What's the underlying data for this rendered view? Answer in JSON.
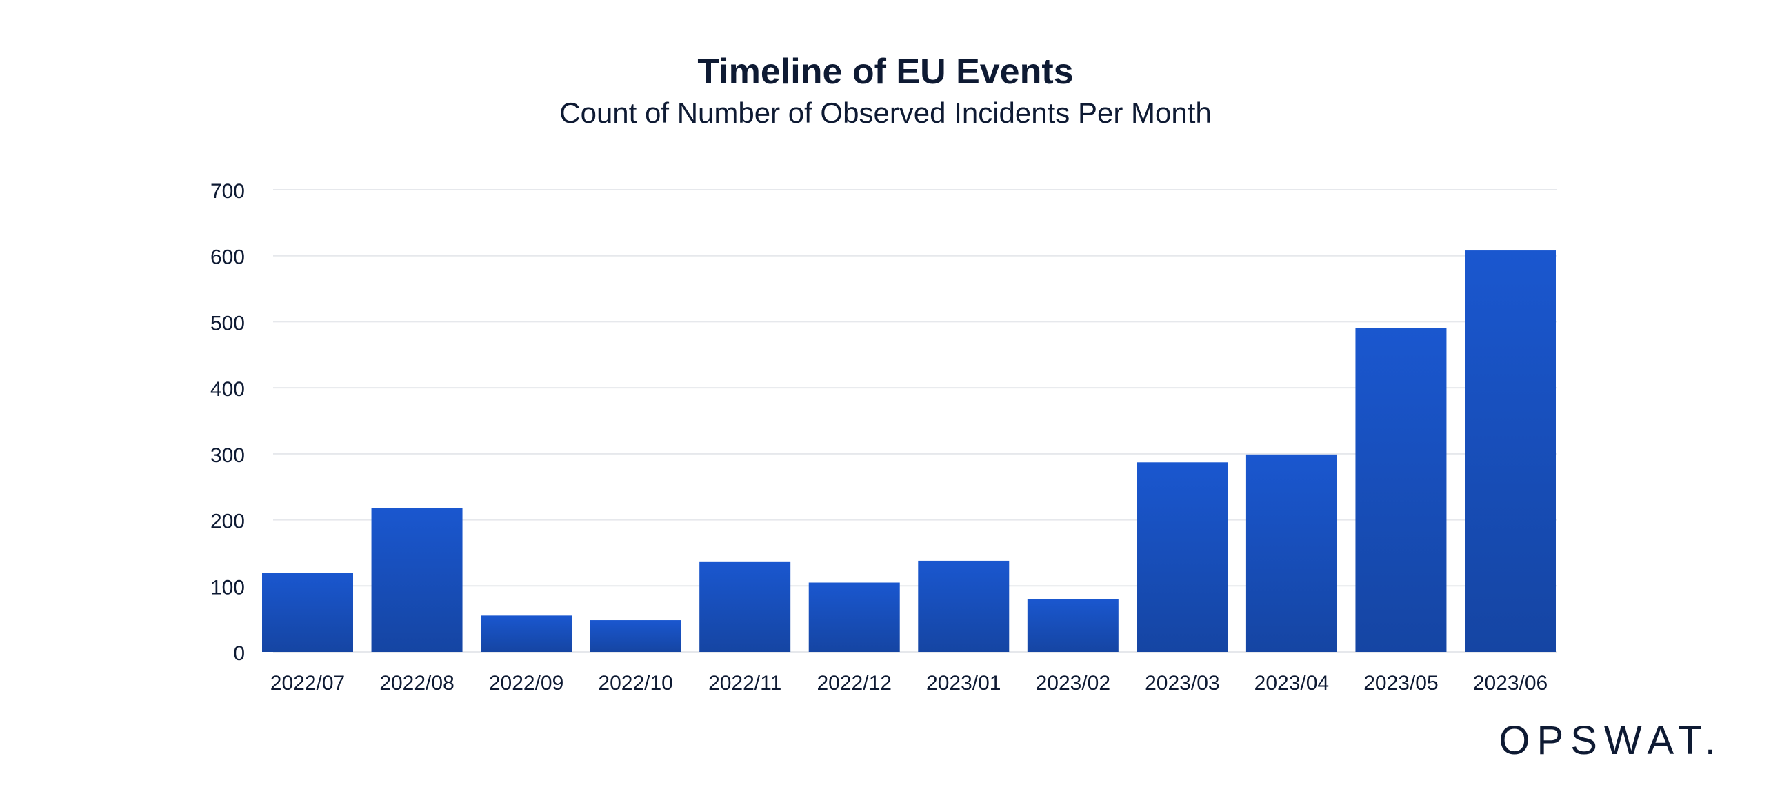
{
  "chart_data": {
    "type": "bar",
    "title": "Timeline of EU Events",
    "subtitle": "Count of Number of Observed Incidents Per Month",
    "xlabel": "",
    "ylabel": "",
    "categories": [
      "2022/07",
      "2022/08",
      "2022/09",
      "2022/10",
      "2022/11",
      "2022/12",
      "2023/01",
      "2023/02",
      "2023/03",
      "2023/04",
      "2023/05",
      "2023/06"
    ],
    "values": [
      120,
      218,
      55,
      48,
      136,
      105,
      138,
      80,
      287,
      299,
      490,
      608
    ],
    "ylim": [
      0,
      700
    ],
    "yticks": [
      0,
      100,
      200,
      300,
      400,
      500,
      600,
      700
    ],
    "grid": true,
    "legend": "none",
    "colors": {
      "bar_top": "#1a57cf",
      "bar_bottom": "#1545a3",
      "grid": "#e6e8ec",
      "text": "#0e1a33"
    }
  },
  "logo": "OPSWAT."
}
